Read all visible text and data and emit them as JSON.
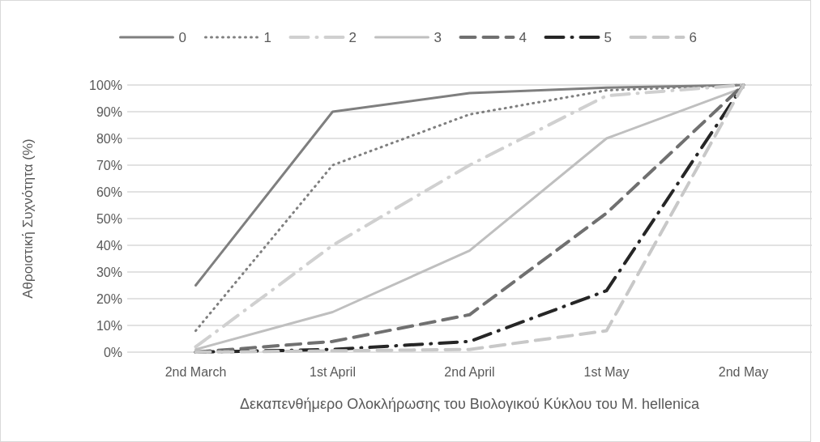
{
  "chart_data": {
    "type": "line",
    "xlabel": "Δεκαπενθήμερο Ολοκλήρωσης του Βιολογικού Κύκλου του M. hellenica",
    "ylabel": "Αθροιστική Συχνότητα (%)",
    "categories": [
      "2nd March",
      "1st April",
      "2nd April",
      "1st May",
      "2nd May"
    ],
    "series": [
      {
        "name": "0",
        "color": "#7f7f7f",
        "line_style": "solid",
        "values": [
          25,
          90,
          97,
          99,
          100
        ]
      },
      {
        "name": "1",
        "color": "#7f7f7f",
        "line_style": "dotted",
        "values": [
          8,
          70,
          89,
          98,
          100
        ]
      },
      {
        "name": "2",
        "color": "#d0d0d0",
        "line_style": "dashdot",
        "values": [
          2,
          40,
          70,
          96,
          100
        ]
      },
      {
        "name": "3",
        "color": "#bfbfbf",
        "line_style": "solid",
        "values": [
          1,
          15,
          38,
          80,
          99
        ]
      },
      {
        "name": "4",
        "color": "#707070",
        "line_style": "dashed",
        "values": [
          0,
          4,
          14,
          52,
          100
        ]
      },
      {
        "name": "5",
        "color": "#262626",
        "line_style": "dashdot",
        "values": [
          0,
          1,
          4,
          23,
          100
        ]
      },
      {
        "name": "6",
        "color": "#c8c8c8",
        "line_style": "dashed",
        "values": [
          0,
          0.5,
          1,
          8,
          100
        ]
      }
    ],
    "ylim": [
      0,
      100
    ],
    "yticks": [
      {
        "value": 0,
        "label": "0%"
      },
      {
        "value": 10,
        "label": "10%"
      },
      {
        "value": 20,
        "label": "20%"
      },
      {
        "value": 30,
        "label": "30%"
      },
      {
        "value": 40,
        "label": "40%"
      },
      {
        "value": 50,
        "label": "50%"
      },
      {
        "value": 60,
        "label": "60%"
      },
      {
        "value": 70,
        "label": "70%"
      },
      {
        "value": 80,
        "label": "80%"
      },
      {
        "value": 90,
        "label": "90%"
      },
      {
        "value": 100,
        "label": "100%"
      }
    ],
    "grid": "y",
    "legend": "top",
    "marker": "none"
  }
}
